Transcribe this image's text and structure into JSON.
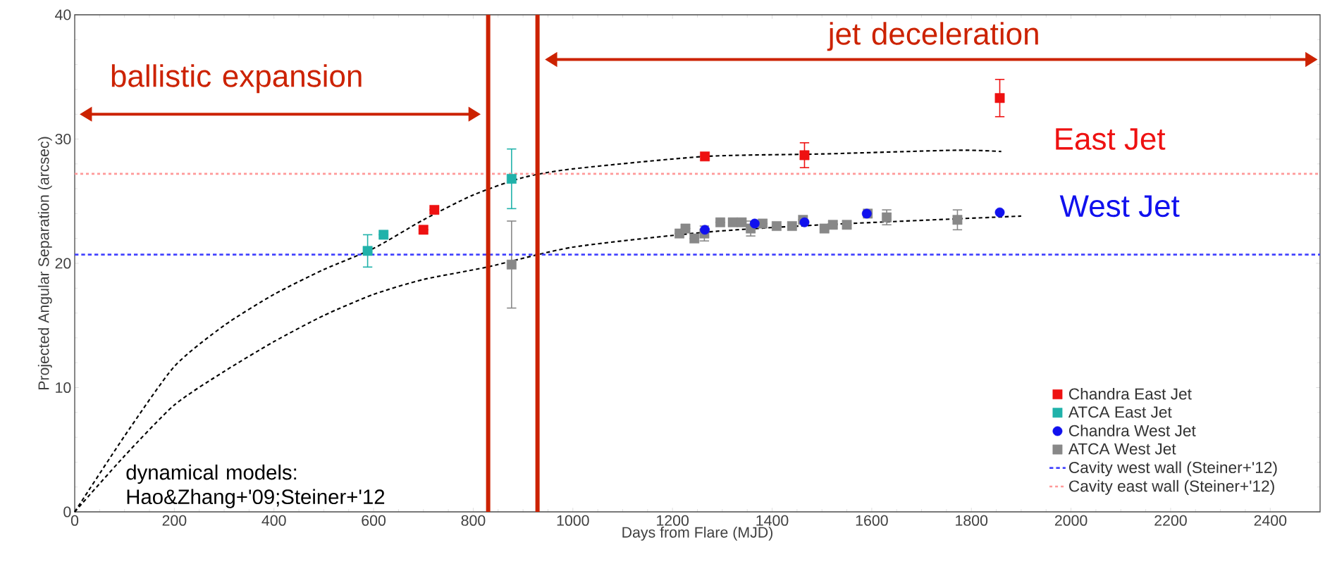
{
  "chart_data": {
    "type": "scatter",
    "xlabel": "Days from Flare (MJD)",
    "ylabel": "Projected Angular Separation (arcsec)",
    "xlim": [
      0,
      2500
    ],
    "ylim": [
      0,
      40
    ],
    "xticks": [
      0,
      200,
      400,
      600,
      800,
      1000,
      1200,
      1400,
      1600,
      1800,
      2000,
      2200,
      2400
    ],
    "yticks": [
      0,
      10,
      20,
      30,
      40
    ],
    "grid": false,
    "legend": "bottom right",
    "series": [
      {
        "name": "Chandra East Jet",
        "color": "#ee1111",
        "marker": "square",
        "x": [
          700,
          722,
          1265,
          1465,
          1857
        ],
        "values": [
          22.7,
          24.3,
          28.6,
          28.7,
          33.3
        ],
        "errors": [
          null,
          null,
          null,
          1.0,
          1.5
        ]
      },
      {
        "name": "ATCA East Jet",
        "color": "#20b2aa",
        "marker": "square",
        "x": [
          588,
          620,
          877
        ],
        "values": [
          21.0,
          22.3,
          26.8
        ],
        "errors": [
          1.3,
          null,
          2.4
        ]
      },
      {
        "name": "Chandra West Jet",
        "color": "#1111ee",
        "marker": "circle",
        "x": [
          1265,
          1365,
          1465,
          1590,
          1857
        ],
        "values": [
          22.7,
          23.2,
          23.3,
          24.0,
          24.1
        ]
      },
      {
        "name": "ATCA West Jet",
        "color": "#888888",
        "marker": "square",
        "x": [
          877,
          1214,
          1226,
          1244,
          1264,
          1296,
          1321,
          1339,
          1357,
          1381,
          1409,
          1440,
          1462,
          1505,
          1522,
          1550,
          1592,
          1630,
          1772
        ],
        "values": [
          19.9,
          22.4,
          22.8,
          22.0,
          22.4,
          23.3,
          23.3,
          23.3,
          22.8,
          23.2,
          23.0,
          23.0,
          23.5,
          22.8,
          23.1,
          23.1,
          24.0,
          23.7,
          23.5
        ],
        "errors": [
          3.5,
          null,
          null,
          null,
          0.6,
          null,
          null,
          null,
          0.6,
          null,
          null,
          null,
          null,
          null,
          null,
          null,
          null,
          0.6,
          0.8
        ]
      },
      {
        "type": "line",
        "color": "#000000",
        "line_style": "dashed",
        "marker": "none",
        "x": [
          0,
          100,
          200,
          300,
          400,
          500,
          600,
          700,
          800,
          900,
          1000,
          1265,
          1500,
          1770,
          1860
        ],
        "values": [
          0,
          6.1,
          11.7,
          15.0,
          17.5,
          19.5,
          21.2,
          23.5,
          25.5,
          26.9,
          27.6,
          28.6,
          28.8,
          29.1,
          29.0
        ]
      },
      {
        "type": "line",
        "color": "#000000",
        "line_style": "dashed",
        "marker": "none",
        "x": [
          0,
          100,
          200,
          300,
          400,
          500,
          600,
          700,
          828,
          1000,
          1265,
          1500,
          1900
        ],
        "values": [
          0,
          4.5,
          8.6,
          11.3,
          13.7,
          15.8,
          17.5,
          18.7,
          19.7,
          21.3,
          22.5,
          23.1,
          23.8
        ]
      }
    ],
    "ref_lines": [
      {
        "axis": "y",
        "value": 20.7,
        "label": "Cavity west wall (Steiner+'12)",
        "color": "#4444ff",
        "line_style": "dashed"
      },
      {
        "axis": "y",
        "value": 27.2,
        "label": "Cavity east wall (Steiner+'12)",
        "color": "#ff9999",
        "line_style": "dotted"
      },
      {
        "axis": "x",
        "value": 830,
        "color": "#cc2200",
        "line_style": "solid"
      },
      {
        "axis": "x",
        "value": 929,
        "color": "#cc2200",
        "line_style": "solid"
      }
    ],
    "annotations": [
      "ballistic expansion",
      "jet deceleration",
      "East Jet",
      "West Jet",
      "dynamical models: Hao&Zhang+'09;Steiner+'12"
    ]
  }
}
